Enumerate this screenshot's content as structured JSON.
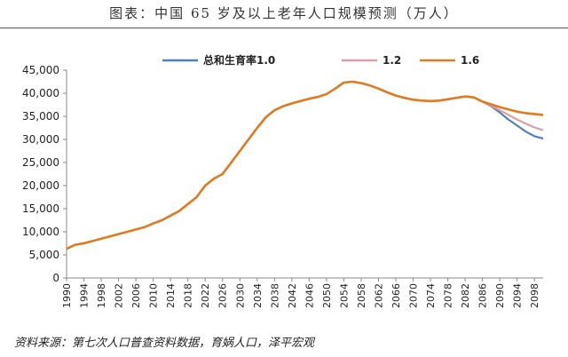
{
  "header": {
    "title": "图表：中国 65 岁及以上老年人口规模预测（万人）"
  },
  "footer": {
    "source": "资料来源：第七次人口普查资料数据，育娲人口，泽平宏观"
  },
  "chart_data": {
    "type": "line",
    "title": "图表：中国 65 岁及以上老年人口规模预测（万人）",
    "xlabel": "",
    "ylabel": "",
    "ylim": [
      0,
      45000
    ],
    "yticks": [
      "0",
      "5,000",
      "10,000",
      "15,000",
      "20,000",
      "25,000",
      "30,000",
      "35,000",
      "40,000",
      "45,000"
    ],
    "xticks": [
      "1990",
      "1994",
      "1998",
      "2002",
      "2006",
      "2010",
      "2014",
      "2018",
      "2022",
      "2026",
      "2030",
      "2034",
      "2038",
      "2042",
      "2046",
      "2050",
      "2054",
      "2058",
      "2062",
      "2066",
      "2070",
      "2074",
      "2078",
      "2082",
      "2086",
      "2090",
      "2094",
      "2098"
    ],
    "legend_position": "top-right",
    "grid": false,
    "x": [
      1990,
      1992,
      1994,
      1996,
      1998,
      2000,
      2002,
      2004,
      2006,
      2008,
      2010,
      2012,
      2014,
      2016,
      2018,
      2020,
      2022,
      2024,
      2026,
      2028,
      2030,
      2032,
      2034,
      2036,
      2038,
      2040,
      2042,
      2044,
      2046,
      2048,
      2050,
      2052,
      2054,
      2056,
      2058,
      2060,
      2062,
      2064,
      2066,
      2068,
      2070,
      2072,
      2074,
      2076,
      2078,
      2080,
      2082,
      2084,
      2086,
      2088,
      2090,
      2092,
      2094,
      2096,
      2098,
      2100
    ],
    "base": [
      6300,
      7200,
      7500,
      8000,
      8500,
      9000,
      9500,
      10000,
      10500,
      11000,
      11800,
      12500,
      13500,
      14500,
      16000,
      17500,
      20000,
      21500,
      22500,
      25000,
      27500,
      30000,
      32500,
      34800,
      36300,
      37200,
      37800,
      38300,
      38800,
      39200,
      39800,
      41000,
      42300,
      42500,
      42200,
      41700,
      41000,
      40200,
      39500,
      39000,
      38600,
      38400,
      38300,
      38400,
      38700,
      39000,
      39300,
      39100,
      38200,
      37600,
      37000,
      36500,
      36000,
      35700,
      35500,
      35300
    ],
    "series": [
      {
        "name": "总和生育率1.0",
        "color": "#4f81bd",
        "x": [
          2086,
          2088,
          2090,
          2092,
          2094,
          2096,
          2098,
          2100
        ],
        "values": [
          38200,
          37200,
          35800,
          34300,
          33000,
          31700,
          30700,
          30200
        ]
      },
      {
        "name": "1.2",
        "color": "#d9a0a8",
        "x": [
          2086,
          2088,
          2090,
          2092,
          2094,
          2096,
          2098,
          2100
        ],
        "values": [
          38200,
          37300,
          36300,
          35300,
          34300,
          33400,
          32600,
          32000
        ]
      },
      {
        "name": "1.6",
        "color": "#e07b20",
        "x": [
          2086,
          2088,
          2090,
          2092,
          2094,
          2096,
          2098,
          2100
        ],
        "values": [
          38200,
          37600,
          37000,
          36500,
          36000,
          35700,
          35500,
          35300
        ]
      }
    ]
  }
}
